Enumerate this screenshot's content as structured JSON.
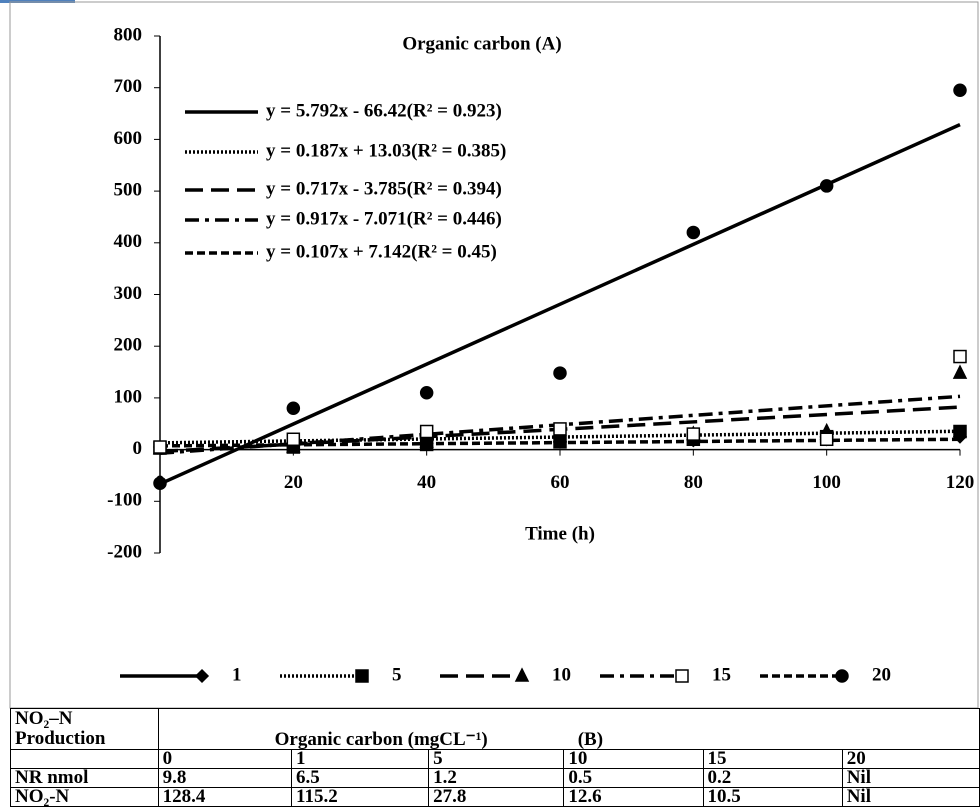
{
  "chart_data": {
    "type": "scatter",
    "title": "Organic carbon    (A)",
    "x_label": "Time (h)",
    "x": [
      0,
      20,
      40,
      60,
      80,
      100,
      120
    ],
    "series": [
      {
        "name": "1",
        "color": "#000",
        "marker": "diamond",
        "dash": "none",
        "values": [
          5,
          8,
          12,
          15,
          18,
          20,
          25
        ]
      },
      {
        "name": "5",
        "color": "#000",
        "marker": "square",
        "dash": "2,2",
        "values": [
          3,
          5,
          10,
          15,
          20,
          25,
          35
        ]
      },
      {
        "name": "10",
        "color": "#000",
        "marker": "triangle",
        "dash": "18,8",
        "values": [
          2,
          5,
          15,
          25,
          30,
          35,
          148
        ]
      },
      {
        "name": "15",
        "color": "#000",
        "marker": "square-open",
        "dash": "14,6,4,6",
        "values": [
          5,
          20,
          35,
          40,
          30,
          20,
          180
        ]
      },
      {
        "name": "20",
        "color": "#000",
        "marker": "circle",
        "dash": "8,4",
        "values": [
          -65,
          80,
          110,
          148,
          420,
          510,
          695
        ]
      }
    ],
    "trendlines": [
      {
        "label": "y = 5.792x - 66.42(R² = 0.923)",
        "slope": 5.792,
        "intercept": -66.42,
        "dash": "none"
      },
      {
        "label": "y = 0.187x + 13.03(R² = 0.385)",
        "slope": 0.187,
        "intercept": 13.03,
        "dash": "2,2"
      },
      {
        "label": "y = 0.717x - 3.785(R² = 0.394)",
        "slope": 0.717,
        "intercept": -3.785,
        "dash": "18,8"
      },
      {
        "label": "y = 0.917x - 7.071(R² = 0.446)",
        "slope": 0.917,
        "intercept": -7.071,
        "dash": "14,6,4,6"
      },
      {
        "label": "y = 0.107x + 7.142(R² = 0.45)",
        "slope": 0.107,
        "intercept": 7.142,
        "dash": "8,4"
      }
    ],
    "xlim": [
      0,
      120
    ],
    "xticks": [
      0,
      20,
      40,
      60,
      80,
      100,
      120
    ],
    "ylim": [
      -200,
      800
    ],
    "yticks": [
      -200,
      -100,
      0,
      100,
      200,
      300,
      400,
      500,
      600,
      700,
      800
    ],
    "grid": false,
    "legend": "bottom"
  },
  "table": {
    "header": "NO₂–N Production",
    "caption": "Organic carbon (mgCL⁻¹)",
    "tag": "(B)",
    "rows": [
      [
        "",
        0,
        1,
        5,
        10,
        15,
        20
      ],
      [
        "NR nmol",
        9.8,
        6.5,
        1.2,
        0.5,
        0.2,
        "Nil"
      ],
      [
        "NO₂-N",
        128.4,
        115.2,
        27.8,
        12.6,
        10.5,
        "Nil"
      ]
    ]
  }
}
